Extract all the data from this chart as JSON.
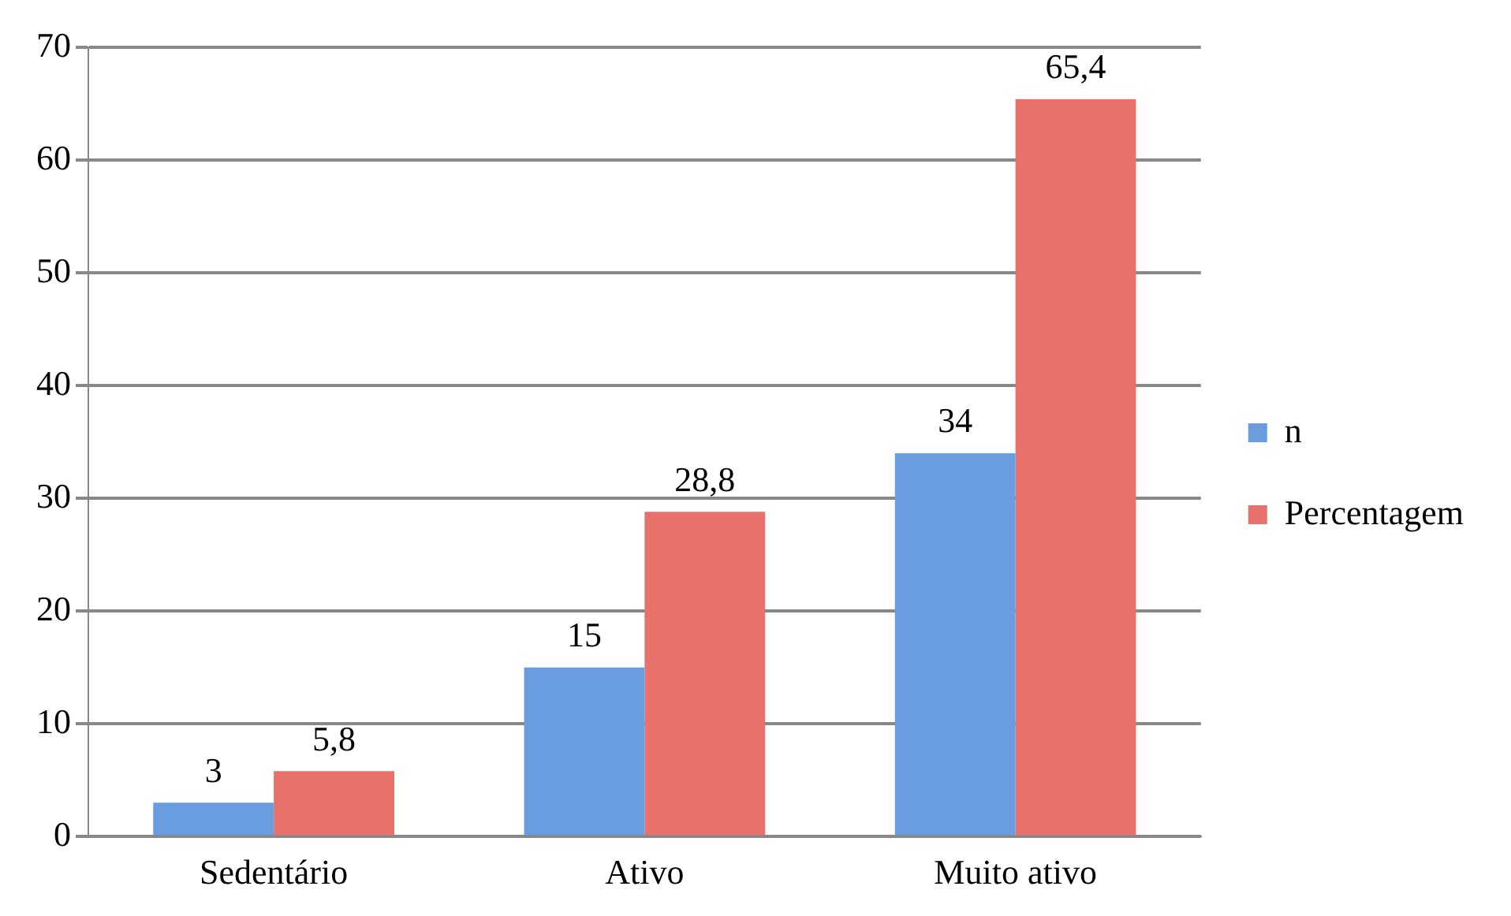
{
  "chart_data": {
    "type": "bar",
    "categories": [
      "Sedentário",
      "Ativo",
      "Muito ativo"
    ],
    "series": [
      {
        "name": "n",
        "color": "#6a9de0",
        "values": [
          3,
          15,
          34
        ],
        "value_labels": [
          "3",
          "15",
          "34"
        ]
      },
      {
        "name": "Percentagem",
        "color": "#e8716b",
        "values": [
          5.8,
          28.8,
          65.4
        ],
        "value_labels": [
          "5,8",
          "28,8",
          "65,4"
        ]
      }
    ],
    "ylim": [
      0,
      70
    ],
    "yticks": [
      0,
      10,
      20,
      30,
      40,
      50,
      60,
      70
    ],
    "grid": "y",
    "legend": "right"
  }
}
